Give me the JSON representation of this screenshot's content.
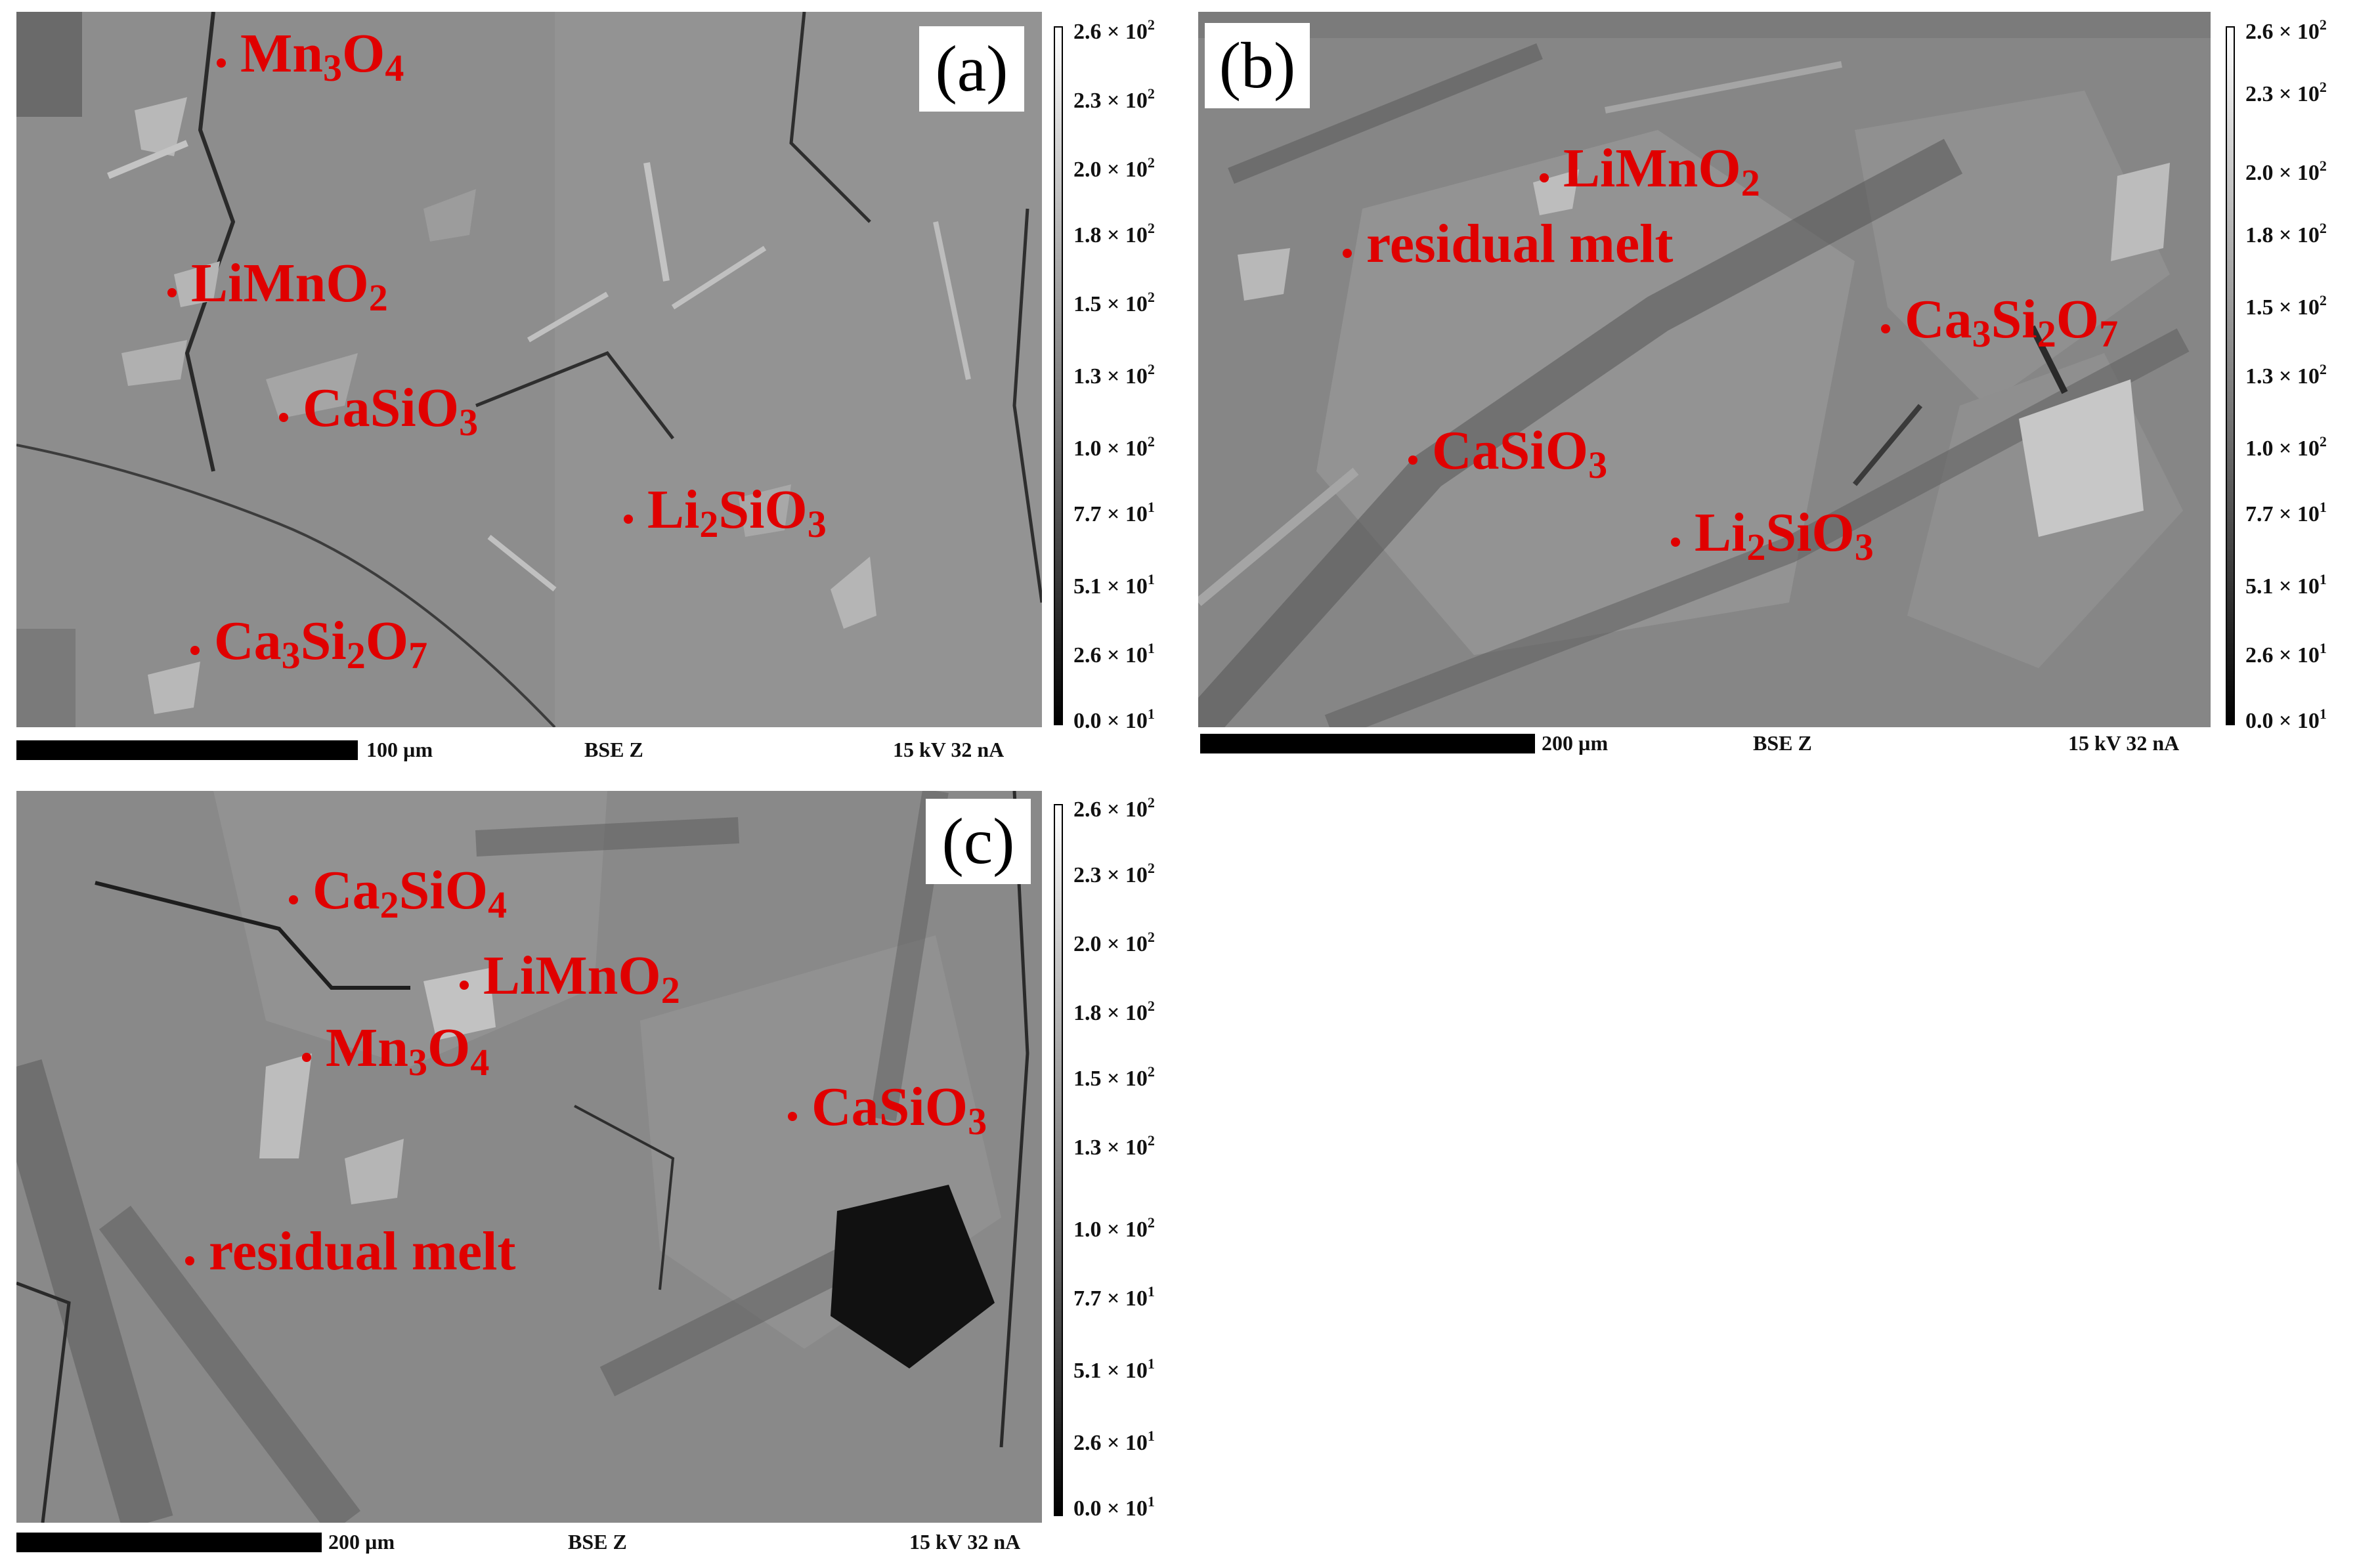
{
  "panels": [
    {
      "letter": "(a)",
      "labels": [
        {
          "base": "Mn",
          "s1": "3",
          "mid": "O",
          "s2": "4",
          "tail": ""
        },
        {
          "base": "LiMnO",
          "s1": "2",
          "mid": "",
          "s2": "",
          "tail": ""
        },
        {
          "base": "CaSiO",
          "s1": "3",
          "mid": "",
          "s2": "",
          "tail": ""
        },
        {
          "base": "Li",
          "s1": "2",
          "mid": "SiO",
          "s2": "3",
          "tail": ""
        },
        {
          "base": "Ca",
          "s1": "3",
          "mid": "Si",
          "s2": "2",
          "tail": "O",
          "s3": "7"
        }
      ],
      "scale_label": "100 µm",
      "detector": "BSE Z",
      "conditions": "15 kV 32 nA"
    },
    {
      "letter": "(b)",
      "labels": [
        {
          "base": "LiMnO",
          "s1": "2",
          "mid": "",
          "s2": "",
          "tail": ""
        },
        {
          "base": "residual melt",
          "s1": "",
          "mid": "",
          "s2": "",
          "tail": ""
        },
        {
          "base": "Ca",
          "s1": "3",
          "mid": "Si",
          "s2": "2",
          "tail": "O",
          "s3": "7"
        },
        {
          "base": "CaSiO",
          "s1": "3",
          "mid": "",
          "s2": "",
          "tail": ""
        },
        {
          "base": "Li",
          "s1": "2",
          "mid": "SiO",
          "s2": "3",
          "tail": ""
        }
      ],
      "scale_label": "200 µm",
      "detector": "BSE Z",
      "conditions": "15 kV 32 nA"
    },
    {
      "letter": "(c)",
      "labels": [
        {
          "base": "Ca",
          "s1": "2",
          "mid": "SiO",
          "s2": "4",
          "tail": ""
        },
        {
          "base": "LiMnO",
          "s1": "2",
          "mid": "",
          "s2": "",
          "tail": ""
        },
        {
          "base": "Mn",
          "s1": "3",
          "mid": "O",
          "s2": "4",
          "tail": ""
        },
        {
          "base": "CaSiO",
          "s1": "3",
          "mid": "",
          "s2": "",
          "tail": ""
        },
        {
          "base": "residual melt",
          "s1": "",
          "mid": "",
          "s2": "",
          "tail": ""
        }
      ],
      "scale_label": "200 µm",
      "detector": "BSE Z",
      "conditions": "15 kV 32 nA"
    }
  ],
  "colorbar": {
    "mantissas": [
      "2.6",
      "2.3",
      "2.0",
      "1.8",
      "1.5",
      "1.3",
      "1.0",
      "7.7",
      "5.1",
      "2.6",
      "0.0"
    ],
    "times": "×",
    "base": "10",
    "exponents": [
      "2",
      "2",
      "2",
      "2",
      "2",
      "2",
      "2",
      "1",
      "1",
      "1",
      "1"
    ]
  },
  "colors": {
    "label": "#e00000",
    "background": "#ffffff"
  }
}
